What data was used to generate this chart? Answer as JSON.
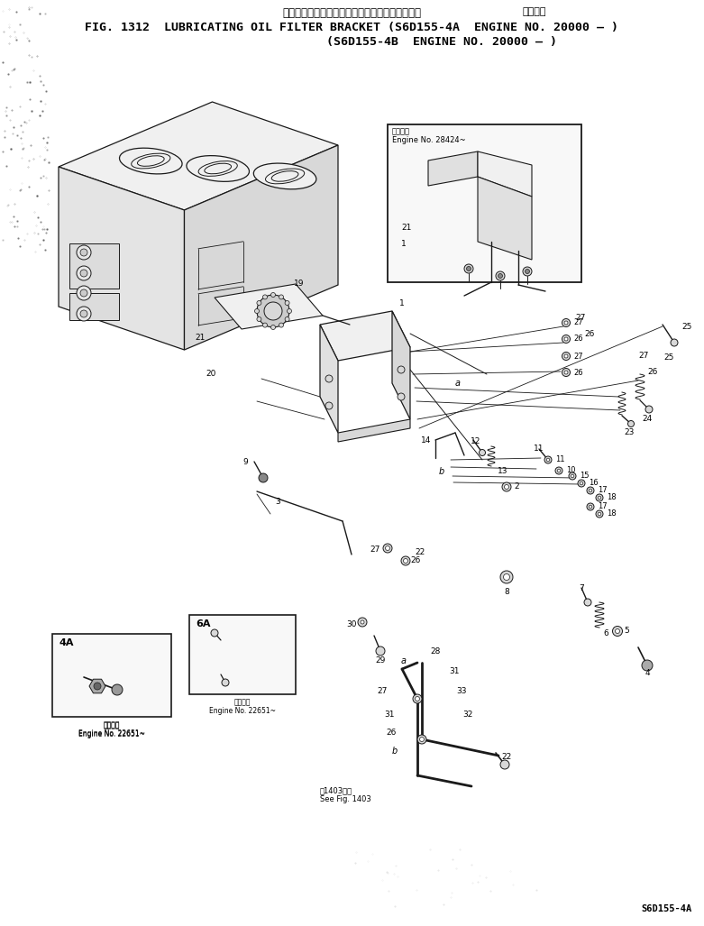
{
  "bg": "#ffffff",
  "fg": "#000000",
  "title_jp": "ルーブリケーティングオイルフィルタブラケット",
  "title_applicable_jp": "適用号機",
  "title_line1": "FIG. 1312  LUBRICATING OIL FILTER BRACKET (S6D155-4A  ENGINE NO. 20000 – )",
  "title_line2": "(S6D155-4B  ENGINE NO. 20000 – )",
  "footer_code": "S6D155-4A",
  "inset1_label_jp": "適用号機",
  "inset1_engine": "Engine No. 28424~",
  "inset2_sublabel_jp": "適用号機",
  "inset2_engine": "Engine No. 22651~",
  "inset3_sublabel_jp": "適用号機",
  "inset3_engine": "Engine No. 22651~",
  "ref_jp": "図1403参照",
  "ref_en": "See Fig. 1403",
  "gray_light": "#f0f0f0",
  "gray_mid": "#d8d8d8",
  "gray_dark": "#b0b0b0",
  "line_color": "#1a1a1a"
}
